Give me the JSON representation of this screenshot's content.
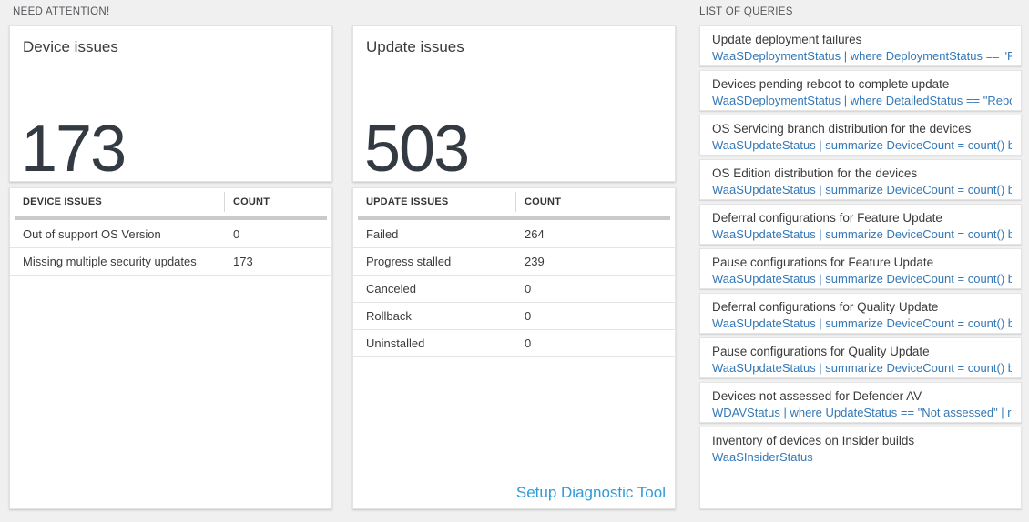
{
  "headers": {
    "need_attention": "NEED ATTENTION!",
    "list_of_queries": "LIST OF QUERIES"
  },
  "device_card": {
    "title": "Device issues",
    "count": "173"
  },
  "device_table": {
    "col_issue": "DEVICE ISSUES",
    "col_count": "COUNT",
    "rows": [
      {
        "label": "Out of support OS Version",
        "count": "0"
      },
      {
        "label": "Missing multiple security updates",
        "count": "173"
      }
    ]
  },
  "update_card": {
    "title": "Update issues",
    "count": "503"
  },
  "update_table": {
    "col_issue": "UPDATE ISSUES",
    "col_count": "COUNT",
    "rows": [
      {
        "label": "Failed",
        "count": "264"
      },
      {
        "label": "Progress stalled",
        "count": "239"
      },
      {
        "label": "Canceled",
        "count": "0"
      },
      {
        "label": "Rollback",
        "count": "0"
      },
      {
        "label": "Uninstalled",
        "count": "0"
      }
    ],
    "footer_link": "Setup Diagnostic Tool"
  },
  "queries": [
    {
      "title": "Update deployment failures",
      "query": "WaaSDeploymentStatus | where DeploymentStatus == \"Failed\" |..."
    },
    {
      "title": "Devices pending reboot to complete update",
      "query": "WaaSDeploymentStatus | where DetailedStatus == \"Reboot pend..."
    },
    {
      "title": "OS Servicing branch distribution for the devices",
      "query": "WaaSUpdateStatus | summarize DeviceCount = count() by OSSer..."
    },
    {
      "title": "OS Edition distribution for the devices",
      "query": "WaaSUpdateStatus | summarize DeviceCount = count() by OSEdit..."
    },
    {
      "title": "Deferral configurations for Feature Update",
      "query": "WaaSUpdateStatus | summarize DeviceCount = count() by Featur..."
    },
    {
      "title": "Pause configurations for Feature Update",
      "query": "WaaSUpdateStatus | summarize DeviceCount = count() by Featur..."
    },
    {
      "title": "Deferral configurations for Quality Update",
      "query": "WaaSUpdateStatus | summarize DeviceCount = count() by Qualit..."
    },
    {
      "title": "Pause configurations for Quality Update",
      "query": "WaaSUpdateStatus | summarize DeviceCount = count() by Qualit..."
    },
    {
      "title": "Devices not assessed for Defender AV",
      "query": "WDAVStatus | where UpdateStatus == \"Not assessed\" | render ta..."
    },
    {
      "title": "Inventory of devices on Insider builds",
      "query": "WaaSInsiderStatus"
    }
  ],
  "colors": {
    "page_background": "#f0f0f0",
    "query_text_blue": "#3478b7",
    "link_blue": "#2f9bd8",
    "big_number": "#333a42",
    "section_header_text": "#55565a"
  }
}
